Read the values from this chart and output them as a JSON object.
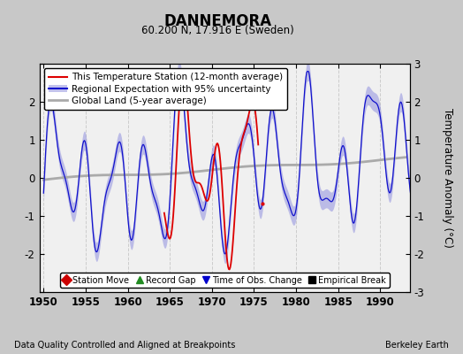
{
  "title": "DANNEMORA",
  "subtitle": "60.200 N, 17.916 E (Sweden)",
  "ylabel": "Temperature Anomaly (°C)",
  "xlim": [
    1949.5,
    1993.5
  ],
  "ylim": [
    -3,
    3
  ],
  "yticks": [
    -3,
    -2,
    -1,
    0,
    1,
    2,
    3
  ],
  "xticks": [
    1950,
    1955,
    1960,
    1965,
    1970,
    1975,
    1980,
    1985,
    1990
  ],
  "bg_color": "#c8c8c8",
  "plot_bg_color": "#f0f0f0",
  "station_color": "#dd0000",
  "regional_color": "#1111cc",
  "regional_fill_color": "#8888dd",
  "global_color": "#aaaaaa",
  "footer_left": "Data Quality Controlled and Aligned at Breakpoints",
  "footer_right": "Berkeley Earth",
  "legend_labels": [
    "This Temperature Station (12-month average)",
    "Regional Expectation with 95% uncertainty",
    "Global Land (5-year average)"
  ],
  "bottom_legend": [
    {
      "label": "Station Move",
      "color": "#cc0000",
      "marker": "D"
    },
    {
      "label": "Record Gap",
      "color": "#228B22",
      "marker": "^"
    },
    {
      "label": "Time of Obs. Change",
      "color": "#0000cc",
      "marker": "v"
    },
    {
      "label": "Empirical Break",
      "color": "#000000",
      "marker": "s"
    }
  ]
}
